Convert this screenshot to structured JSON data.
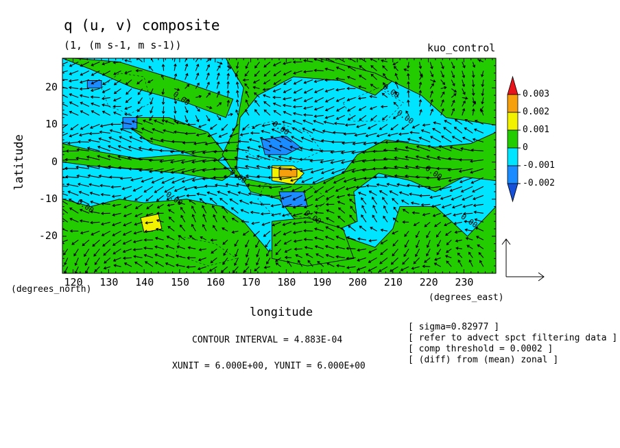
{
  "chart_data": {
    "type": "heatmap",
    "title": "q (u, v) composite",
    "subtitle": "(1, (m s-1, m s-1))",
    "run_label": "kuo_control",
    "xlabel": "longitude",
    "ylabel": "latitude",
    "x_unit_label": "(degrees_east)",
    "y_unit_label": "(degrees_north)",
    "xlim": [
      117,
      239
    ],
    "ylim": [
      -30,
      28
    ],
    "x_ticks": [
      120,
      130,
      140,
      150,
      160,
      170,
      180,
      190,
      200,
      210,
      220,
      230
    ],
    "y_ticks": [
      20,
      10,
      0,
      -10,
      -20
    ],
    "colorbar": {
      "labels": [
        "0.003",
        "0.002",
        "0.001",
        "0",
        "-0.001",
        "-0.002"
      ],
      "colors": [
        "#e8141c",
        "#f5a00c",
        "#f2f200",
        "#22cc00",
        "#00e4ff",
        "#1a8cff",
        "#1450d8"
      ]
    },
    "contour_labels": [
      {
        "text": "0.00",
        "lon": 148,
        "lat": 18
      },
      {
        "text": "0.00",
        "lon": 207,
        "lat": 20
      },
      {
        "text": "0.00",
        "lon": 211,
        "lat": 13
      },
      {
        "text": "0.00",
        "lon": 176,
        "lat": 10
      },
      {
        "text": "0.00",
        "lon": 164,
        "lat": -3
      },
      {
        "text": "0.00",
        "lon": 219,
        "lat": -2
      },
      {
        "text": "0.00",
        "lon": 146,
        "lat": -9
      },
      {
        "text": "0.00",
        "lon": 121,
        "lat": -11
      },
      {
        "text": "0.00",
        "lon": 185,
        "lat": -14
      },
      {
        "text": "0.00",
        "lon": 229,
        "lat": -15
      }
    ],
    "regions": {
      "pos_001": [
        [
          [
            117,
            28
          ],
          [
            125,
            25
          ],
          [
            137,
            20
          ],
          [
            152,
            16
          ],
          [
            163,
            12
          ],
          [
            165,
            17
          ],
          [
            150,
            22
          ],
          [
            133,
            27
          ],
          [
            120,
            28
          ]
        ],
        [
          [
            135,
            10
          ],
          [
            142,
            5
          ],
          [
            150,
            3
          ],
          [
            160,
            0
          ],
          [
            163,
            2
          ],
          [
            158,
            8
          ],
          [
            147,
            12
          ],
          [
            138,
            12
          ]
        ],
        [
          [
            117,
            5
          ],
          [
            126,
            3
          ],
          [
            138,
            1
          ],
          [
            150,
            2
          ],
          [
            160,
            1
          ],
          [
            165,
            -3
          ],
          [
            162,
            -5
          ],
          [
            150,
            -3
          ],
          [
            138,
            -2
          ],
          [
            125,
            -1
          ],
          [
            117,
            0
          ]
        ],
        [
          [
            163,
            28
          ],
          [
            168,
            20
          ],
          [
            166,
            10
          ],
          [
            162,
            2
          ],
          [
            166,
            -4
          ],
          [
            176,
            -6
          ],
          [
            188,
            -6
          ],
          [
            196,
            -3
          ],
          [
            200,
            2
          ],
          [
            208,
            6
          ],
          [
            222,
            4
          ],
          [
            232,
            5
          ],
          [
            239,
            8
          ],
          [
            239,
            -5
          ],
          [
            230,
            -4
          ],
          [
            222,
            -8
          ],
          [
            215,
            -5
          ],
          [
            206,
            -3
          ],
          [
            199,
            -8
          ],
          [
            200,
            -16
          ],
          [
            190,
            -20
          ],
          [
            182,
            -15
          ],
          [
            178,
            -10
          ],
          [
            170,
            -8
          ],
          [
            166,
            -2
          ],
          [
            167,
            12
          ],
          [
            172,
            18
          ],
          [
            182,
            23
          ],
          [
            195,
            22
          ],
          [
            205,
            18
          ],
          [
            210,
            22
          ],
          [
            204,
            28
          ]
        ],
        [
          [
            189,
            28
          ],
          [
            205,
            24
          ],
          [
            218,
            18
          ],
          [
            225,
            12
          ],
          [
            239,
            10
          ],
          [
            239,
            28
          ]
        ],
        [
          [
            117,
            -10
          ],
          [
            125,
            -12
          ],
          [
            133,
            -10
          ],
          [
            140,
            -11
          ],
          [
            152,
            -10
          ],
          [
            162,
            -12
          ],
          [
            168,
            -16
          ],
          [
            175,
            -24
          ],
          [
            188,
            -22
          ],
          [
            196,
            -20
          ],
          [
            205,
            -23
          ],
          [
            210,
            -18
          ],
          [
            212,
            -12
          ],
          [
            222,
            -12
          ],
          [
            231,
            -20
          ],
          [
            239,
            -12
          ],
          [
            239,
            -30
          ],
          [
            117,
            -30
          ]
        ],
        [
          [
            176,
            -16
          ],
          [
            186,
            -15
          ],
          [
            196,
            -18
          ],
          [
            199,
            -26
          ],
          [
            186,
            -28
          ],
          [
            176,
            -26
          ]
        ]
      ],
      "pos_002": [
        [
          [
            139,
            -15
          ],
          [
            144,
            -14
          ],
          [
            145,
            -18
          ],
          [
            140,
            -19
          ]
        ]
      ],
      "pos_002b": [
        [
          [
            176,
            -1
          ],
          [
            182,
            -1
          ],
          [
            185,
            -3
          ],
          [
            182,
            -6
          ],
          [
            176,
            -5
          ]
        ]
      ],
      "pos_003": [
        [
          [
            178,
            -2
          ],
          [
            183,
            -2
          ],
          [
            183,
            -4
          ],
          [
            178,
            -4
          ]
        ]
      ],
      "neg_001": [
        [
          [
            173,
            6
          ],
          [
            180,
            7
          ],
          [
            184,
            4
          ],
          [
            180,
            2
          ],
          [
            174,
            2
          ]
        ],
        [
          [
            178,
            -8
          ],
          [
            185,
            -8
          ],
          [
            186,
            -12
          ],
          [
            179,
            -12
          ]
        ],
        [
          [
            134,
            12
          ],
          [
            138,
            12
          ],
          [
            138,
            9
          ],
          [
            134,
            9
          ]
        ],
        [
          [
            124,
            22
          ],
          [
            128,
            22
          ],
          [
            128,
            20
          ],
          [
            124,
            20
          ]
        ]
      ]
    }
  },
  "annotations": {
    "contour_interval": "CONTOUR INTERVAL = 4.883E-04",
    "units": "XUNIT = 6.000E+00, YUNIT = 6.000E+00",
    "notes": [
      "[ sigma=0.82977 ]",
      "[ refer to advect spct filtering data ]",
      "[ comp threshold = 0.0002 ]",
      "[ (diff) from (mean) zonal ]"
    ]
  },
  "colors": {
    "green": "#22cc00",
    "cyan": "#00e4ff",
    "blue": "#1a8cff",
    "yellow": "#f2f200",
    "orange": "#f5a00c",
    "red": "#e8141c"
  }
}
